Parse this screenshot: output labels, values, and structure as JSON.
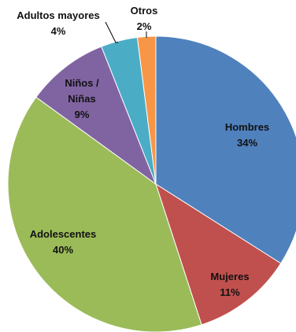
{
  "chart_data": {
    "type": "pie",
    "title": "",
    "start_angle_deg": 0,
    "direction": "clockwise",
    "legend": "none",
    "slices": [
      {
        "label": "Hombres",
        "value_label": "34%",
        "value": 34,
        "color": "#4F81BD"
      },
      {
        "label": "Mujeres",
        "value_label": "11%",
        "value": 11,
        "color": "#C0504D"
      },
      {
        "label": "Adolescentes",
        "value_label": "40%",
        "value": 40,
        "color": "#9BBB59"
      },
      {
        "label": "Niños / Niñas",
        "value_label": "9%",
        "value": 9,
        "color": "#8064A2"
      },
      {
        "label": "Adultos mayores",
        "value_label": "4%",
        "value": 4,
        "color": "#4BACC6"
      },
      {
        "label": "Otros",
        "value_label": "2%",
        "value": 2,
        "color": "#F79646"
      }
    ]
  }
}
